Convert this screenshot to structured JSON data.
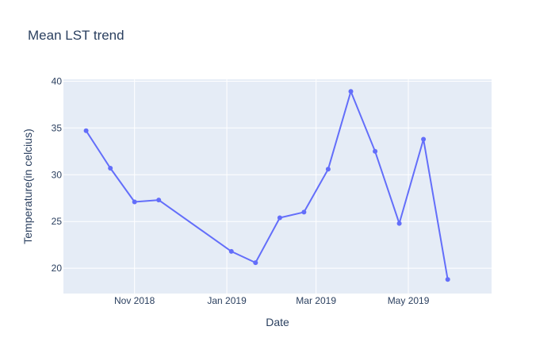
{
  "chart_data": {
    "type": "line",
    "title": "Mean LST trend",
    "xlabel": "Date",
    "ylabel": "Temperature(in celcius)",
    "x_type": "date",
    "xlim": [
      "2018-09-15",
      "2019-06-25"
    ],
    "ylim": [
      17.3,
      40.2
    ],
    "x_ticks": [
      {
        "date": "2018-11-01",
        "label": "Nov 2018"
      },
      {
        "date": "2019-01-01",
        "label": "Jan 2019"
      },
      {
        "date": "2019-03-01",
        "label": "Mar 2019"
      },
      {
        "date": "2019-05-01",
        "label": "May 2019"
      }
    ],
    "y_ticks": [
      20,
      25,
      30,
      35,
      40
    ],
    "grid": true,
    "line_color": "#636efa",
    "plot_bg": "#e5ecf6",
    "series": [
      {
        "x": [
          "2018-09-30",
          "2018-10-16",
          "2018-11-01",
          "2018-11-17",
          "2019-01-04",
          "2019-01-20",
          "2019-02-05",
          "2019-02-21",
          "2019-03-09",
          "2019-03-24",
          "2019-04-09",
          "2019-04-25",
          "2019-05-11",
          "2019-05-27"
        ],
        "values": [
          34.7,
          30.7,
          27.1,
          27.3,
          21.8,
          20.6,
          25.4,
          26.0,
          30.6,
          38.9,
          32.5,
          24.8,
          33.8,
          18.8
        ]
      }
    ]
  }
}
